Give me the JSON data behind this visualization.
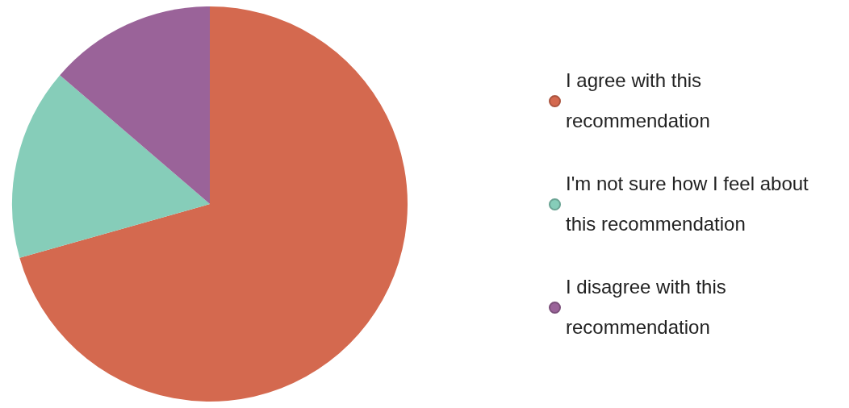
{
  "chart_data": {
    "type": "pie",
    "categories": [
      "I agree with this recommendation",
      "I'm not sure how I feel about this recommendation",
      "I disagree with this recommendation"
    ],
    "values": [
      70.6,
      15.7,
      13.7
    ],
    "colors": [
      "#d4694f",
      "#86cdb9",
      "#9a6399"
    ],
    "legend": "right"
  }
}
